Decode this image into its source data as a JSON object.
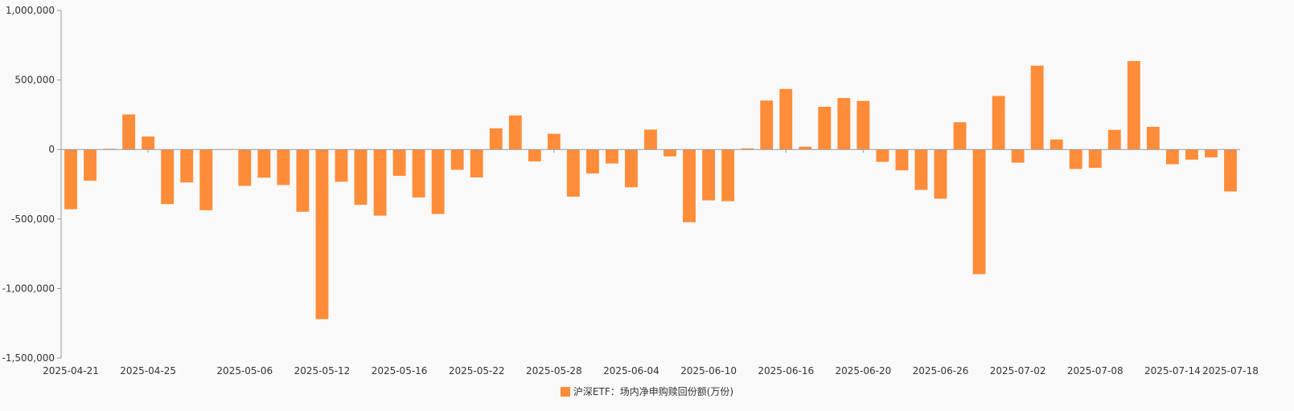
{
  "chart_data": {
    "type": "bar",
    "legend_position": "bottom",
    "grid": false,
    "series": [
      {
        "name": "沪深ETF：场内净申购赎回份额(万份)",
        "color": "#ff8c38",
        "values": [
          -430000,
          -225000,
          5000,
          252000,
          93000,
          -393000,
          -237000,
          -437000,
          0,
          -262000,
          -203000,
          -256000,
          -448000,
          -1220000,
          -232000,
          -398000,
          -476000,
          -190000,
          -345000,
          -464000,
          -146000,
          -201000,
          152000,
          245000,
          -86000,
          113000,
          -339000,
          -173000,
          -101000,
          -272000,
          143000,
          -50000,
          -523000,
          -366000,
          -372000,
          8000,
          352000,
          435000,
          20000,
          307000,
          370000,
          349000,
          -89000,
          -150000,
          -291000,
          -354000,
          196000,
          -897000,
          385000,
          -95000,
          603000,
          72000,
          -140000,
          -132000,
          141000,
          636000,
          163000,
          -106000,
          -73000,
          -57000,
          -302000
        ]
      }
    ],
    "ylim": [
      -1500000,
      1000000
    ],
    "yticks": [
      "1,000,000",
      "500,000",
      "0",
      "-500,000",
      "-1,000,000",
      "-1,500,000"
    ],
    "ytick_values": [
      1000000,
      500000,
      0,
      -500000,
      -1000000,
      -1500000
    ],
    "xtick_labels": [
      "2025-04-21",
      "2025-04-25",
      "2025-05-06",
      "2025-05-12",
      "2025-05-16",
      "2025-05-22",
      "2025-05-28",
      "2025-06-04",
      "2025-06-10",
      "2025-06-16",
      "2025-06-20",
      "2025-06-26",
      "2025-07-02",
      "2025-07-08",
      "2025-07-14",
      "2025-07-18"
    ],
    "xtick_indices": [
      0,
      4,
      9,
      13,
      17,
      21,
      25,
      29,
      33,
      37,
      41,
      45,
      49,
      53,
      57,
      60
    ]
  }
}
